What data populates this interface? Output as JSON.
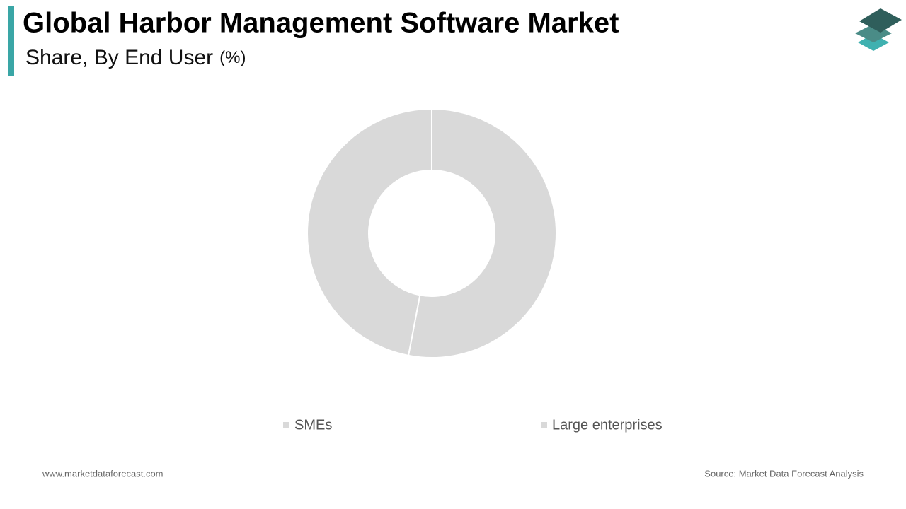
{
  "chart_data": {
    "type": "donut",
    "title": "Global Harbor Management Software Market",
    "subtitle": "Share, By End User",
    "unit": "(%)",
    "categories": [
      "SMEs",
      "Large enterprises"
    ],
    "values": [
      53,
      47
    ],
    "colors": [
      "#d9d9d9",
      "#d9d9d9"
    ],
    "footer_left": "www.marketdataforecast.com",
    "footer_right": "Source: Market Data Forecast Analysis"
  }
}
